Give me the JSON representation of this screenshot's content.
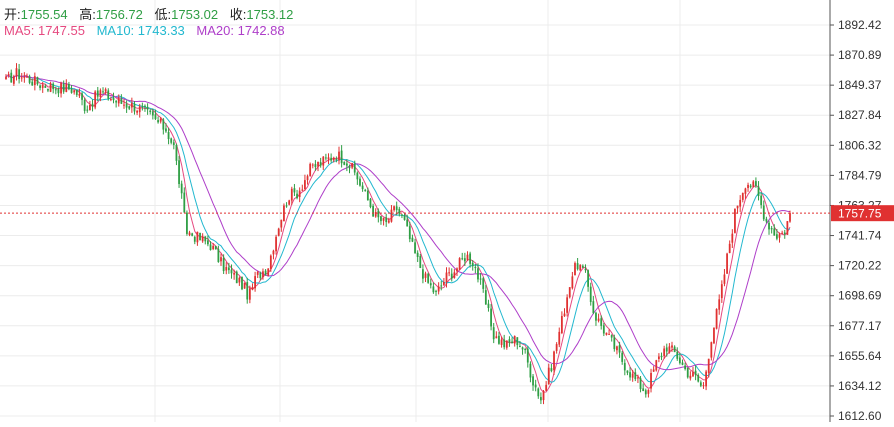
{
  "legend": {
    "open_label": "开:",
    "open_value": "1755.54",
    "high_label": "高:",
    "high_value": "1756.72",
    "low_label": "低:",
    "low_value": "1753.02",
    "close_label": "收:",
    "close_value": "1753.12",
    "ma5_label": "MA5:",
    "ma5_value": "1747.55",
    "ma10_label": "MA10:",
    "ma10_value": "1743.33",
    "ma20_label": "MA20:",
    "ma20_value": "1742.88"
  },
  "colors": {
    "up": "#e03131",
    "down": "#2f9e44",
    "ma5": "#e64980",
    "ma10": "#22b8cf",
    "ma20": "#ae3ec9",
    "grid": "#ececec",
    "price_line": "#e03131",
    "text": "#333333",
    "value_green": "#2f9e44"
  },
  "chart_data": {
    "type": "candlestick",
    "title": "",
    "ylim": [
      1612.6,
      1910
    ],
    "y_ticks": [
      "1892.42",
      "1870.89",
      "1849.37",
      "1827.84",
      "1806.32",
      "1784.79",
      "1763.27",
      "1741.74",
      "1720.22",
      "1698.69",
      "1677.17",
      "1655.64",
      "1634.12",
      "1612.60"
    ],
    "last_price": 1757.75,
    "last_price_label": "1757.75",
    "grid": true,
    "close_path_anchors": [
      [
        0,
        1852
      ],
      [
        10,
        1858
      ],
      [
        25,
        1853
      ],
      [
        35,
        1850
      ],
      [
        50,
        1848
      ],
      [
        65,
        1847
      ],
      [
        72,
        1843
      ],
      [
        80,
        1833
      ],
      [
        95,
        1845
      ],
      [
        110,
        1838
      ],
      [
        130,
        1834
      ],
      [
        145,
        1827
      ],
      [
        160,
        1818
      ],
      [
        168,
        1805
      ],
      [
        175,
        1772
      ],
      [
        180,
        1745
      ],
      [
        190,
        1741
      ],
      [
        205,
        1735
      ],
      [
        215,
        1722
      ],
      [
        225,
        1714
      ],
      [
        235,
        1708
      ],
      [
        243,
        1698
      ],
      [
        250,
        1712
      ],
      [
        262,
        1720
      ],
      [
        272,
        1748
      ],
      [
        282,
        1770
      ],
      [
        292,
        1773
      ],
      [
        305,
        1790
      ],
      [
        318,
        1795
      ],
      [
        330,
        1800
      ],
      [
        340,
        1796
      ],
      [
        350,
        1785
      ],
      [
        360,
        1770
      ],
      [
        370,
        1755
      ],
      [
        380,
        1750
      ],
      [
        390,
        1762
      ],
      [
        398,
        1752
      ],
      [
        408,
        1730
      ],
      [
        420,
        1710
      ],
      [
        430,
        1700
      ],
      [
        440,
        1712
      ],
      [
        450,
        1718
      ],
      [
        460,
        1728
      ],
      [
        468,
        1722
      ],
      [
        478,
        1698
      ],
      [
        488,
        1670
      ],
      [
        500,
        1663
      ],
      [
        510,
        1668
      ],
      [
        518,
        1660
      ],
      [
        527,
        1638
      ],
      [
        535,
        1625
      ],
      [
        545,
        1648
      ],
      [
        555,
        1678
      ],
      [
        565,
        1712
      ],
      [
        572,
        1722
      ],
      [
        580,
        1712
      ],
      [
        588,
        1686
      ],
      [
        600,
        1672
      ],
      [
        610,
        1660
      ],
      [
        620,
        1648
      ],
      [
        630,
        1638
      ],
      [
        640,
        1630
      ],
      [
        650,
        1650
      ],
      [
        660,
        1663
      ],
      [
        670,
        1657
      ],
      [
        680,
        1645
      ],
      [
        690,
        1640
      ],
      [
        697,
        1632
      ],
      [
        705,
        1668
      ],
      [
        715,
        1700
      ],
      [
        722,
        1730
      ],
      [
        730,
        1762
      ],
      [
        740,
        1781
      ],
      [
        750,
        1775
      ],
      [
        760,
        1753
      ],
      [
        770,
        1742
      ],
      [
        778,
        1744
      ],
      [
        784,
        1757.75
      ]
    ]
  }
}
